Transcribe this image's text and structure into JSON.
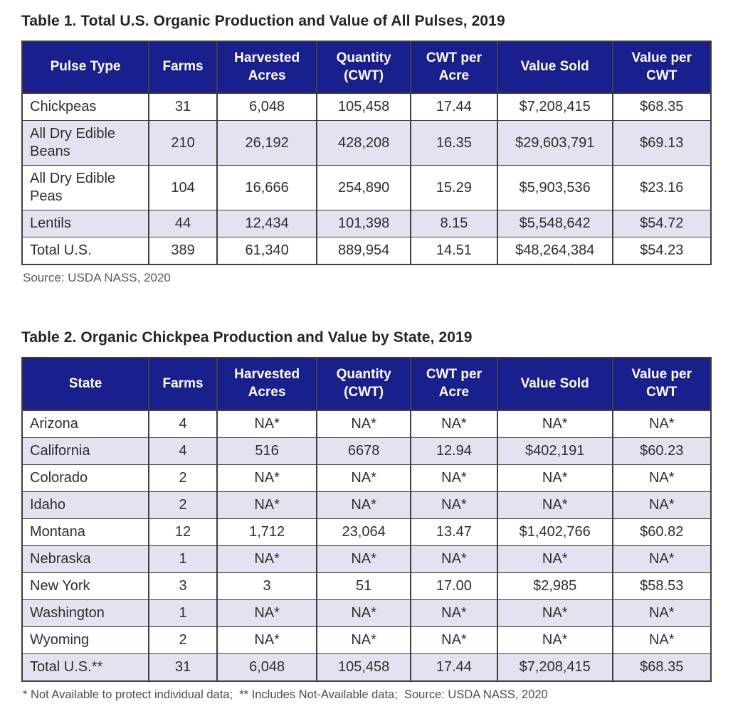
{
  "colors": {
    "header_bg": "#1a1f8e",
    "row_alt_bg": "#e4e1f0",
    "border": "#3f3f3f"
  },
  "table1": {
    "title": "Table 1. Total U.S. Organic Production and Value of All Pulses, 2019",
    "columns": [
      "Pulse Type",
      "Farms",
      "Harvested Acres",
      "Quantity (CWT)",
      "CWT per Acre",
      "Value Sold",
      "Value per CWT"
    ],
    "rows": [
      [
        "Chickpeas",
        "31",
        "6,048",
        "105,458",
        "17.44",
        "$7,208,415",
        "$68.35"
      ],
      [
        "All Dry Edible Beans",
        "210",
        "26,192",
        "428,208",
        "16.35",
        "$29,603,791",
        "$69.13"
      ],
      [
        "All Dry Edible Peas",
        "104",
        "16,666",
        "254,890",
        "15.29",
        "$5,903,536",
        "$23.16"
      ],
      [
        "Lentils",
        "44",
        "12,434",
        "101,398",
        "8.15",
        "$5,548,642",
        "$54.72"
      ],
      [
        "Total U.S.",
        "389",
        "61,340",
        "889,954",
        "14.51",
        "$48,264,384",
        "$54.23"
      ]
    ],
    "source": "Source: USDA NASS, 2020"
  },
  "table2": {
    "title": "Table 2. Organic Chickpea Production and Value by State, 2019",
    "columns": [
      "State",
      "Farms",
      "Harvested Acres",
      "Quantity (CWT)",
      "CWT per Acre",
      "Value Sold",
      "Value per CWT"
    ],
    "rows": [
      [
        "Arizona",
        "4",
        "NA*",
        "NA*",
        "NA*",
        "NA*",
        "NA*"
      ],
      [
        "California",
        "4",
        "516",
        "6678",
        "12.94",
        "$402,191",
        "$60.23"
      ],
      [
        "Colorado",
        "2",
        "NA*",
        "NA*",
        "NA*",
        "NA*",
        "NA*"
      ],
      [
        "Idaho",
        "2",
        "NA*",
        "NA*",
        "NA*",
        "NA*",
        "NA*"
      ],
      [
        "Montana",
        "12",
        "1,712",
        "23,064",
        "13.47",
        "$1,402,766",
        "$60.82"
      ],
      [
        "Nebraska",
        "1",
        "NA*",
        "NA*",
        "NA*",
        "NA*",
        "NA*"
      ],
      [
        "New York",
        "3",
        "3",
        "51",
        "17.00",
        "$2,985",
        "$58.53"
      ],
      [
        "Washington",
        "1",
        "NA*",
        "NA*",
        "NA*",
        "NA*",
        "NA*"
      ],
      [
        "Wyoming",
        "2",
        "NA*",
        "NA*",
        "NA*",
        "NA*",
        "NA*"
      ],
      [
        "Total U.S.**",
        "31",
        "6,048",
        "105,458",
        "17.44",
        "$7,208,415",
        "$68.35"
      ]
    ],
    "footnote": "* Not Available to protect individual data;  ** Includes Not-Available data;  Source: USDA NASS, 2020"
  }
}
